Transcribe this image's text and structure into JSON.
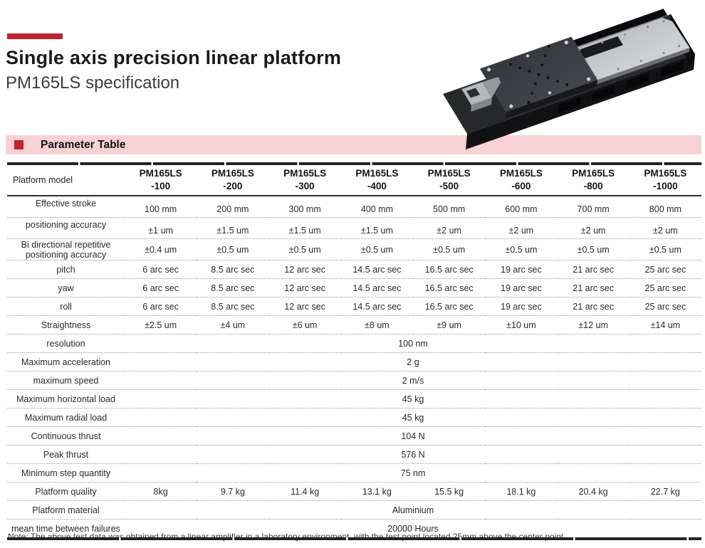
{
  "page": {
    "title": "Single axis precision linear platform",
    "subtitle": "PM165LS specification",
    "note": "Note: The above test data was obtained from a linear amplifier in a laboratory environment, with the test point located 25mm above the center point"
  },
  "section": {
    "heading": "Parameter Table"
  },
  "colors": {
    "accent_red": "#c3232b",
    "band_pink": "#f8d2d2",
    "table_line_dark": "#242122",
    "dotted_line": "#999999"
  },
  "icons": {
    "section_bullet": "red-square",
    "accent_bar": "red-bar",
    "product_photo": "linear-stage-3d-render"
  },
  "table": {
    "header": {
      "label": "Platform model",
      "models": [
        "PM165LS\n-100",
        "PM165LS\n-200",
        "PM165LS\n-300",
        "PM165LS\n-400",
        "PM165LS\n-500",
        "PM165LS\n-600",
        "PM165LS\n-800",
        "PM165LS\n-1000"
      ]
    },
    "rows": [
      {
        "label": "Effective stroke",
        "values": [
          "100 mm",
          "200 mm",
          "300 mm",
          "400 mm",
          "500 mm",
          "600 mm",
          "700 mm",
          "800 mm"
        ]
      },
      {
        "label": "positioning accuracy",
        "values": [
          "±1 um",
          "±1.5 um",
          "±1.5 um",
          "±1.5 um",
          "±2 um",
          "±2 um",
          "±2 um",
          "±2 um"
        ]
      },
      {
        "label": "Bi directional repetitive positioning accuracy",
        "values": [
          "±0.4 um",
          "±0.5 um",
          "±0.5 um",
          "±0.5 um",
          "±0.5 um",
          "±0.5 um",
          "±0.5 um",
          "±0.5 um"
        ]
      },
      {
        "label": "pitch",
        "values": [
          "6 arc sec",
          "8.5 arc sec",
          "12 arc sec",
          "14.5 arc sec",
          "16.5 arc sec",
          "19 arc sec",
          "21 arc sec",
          "25 arc sec"
        ]
      },
      {
        "label": "yaw",
        "values": [
          "6 arc sec",
          "8.5 arc sec",
          "12 arc sec",
          "14.5 arc sec",
          "16.5 arc sec",
          "19 arc sec",
          "21 arc sec",
          "25 arc sec"
        ]
      },
      {
        "label": "roll",
        "values": [
          "6 arc sec",
          "8.5 arc sec",
          "12 arc sec",
          "14.5 arc sec",
          "16.5 arc sec",
          "19 arc sec",
          "21 arc sec",
          "25 arc sec"
        ]
      },
      {
        "label": "Straightness",
        "values": [
          "±2.5 um",
          "±4 um",
          "±6 um",
          "±8 um",
          "±9 um",
          "±10 um",
          "±12 um",
          "±14 um"
        ]
      },
      {
        "label": "resolution",
        "merged": "100 nm"
      },
      {
        "label": "Maximum acceleration",
        "merged": "2 g"
      },
      {
        "label": "maximum speed",
        "merged": "2 m/s"
      },
      {
        "label": "Maximum horizontal load",
        "merged": "45 kg"
      },
      {
        "label": "Maximum radial load",
        "merged": "45 kg"
      },
      {
        "label": "Continuous thrust",
        "merged": "104 N"
      },
      {
        "label": "Peak thrust",
        "merged": "576 N"
      },
      {
        "label": "Minimum step quantity",
        "merged": "75 nm"
      },
      {
        "label": "Platform quality",
        "values": [
          "8kg",
          "9.7 kg",
          "11.4 kg",
          "13.1 kg",
          "15.5 kg",
          "18.1 kg",
          "20.4 kg",
          "22.7 kg"
        ]
      },
      {
        "label": "Platform material",
        "merged": "Aluminium"
      },
      {
        "label": "mean time between failures",
        "merged": "20000 Hours"
      }
    ]
  }
}
